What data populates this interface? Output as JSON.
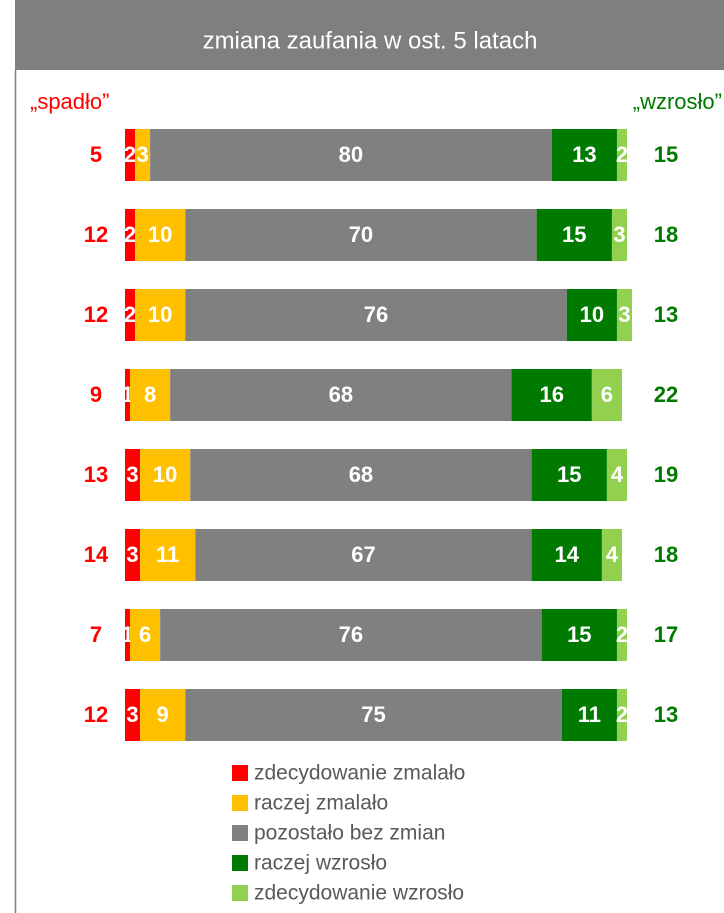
{
  "chart_data": {
    "type": "stacked_bar_horizontal",
    "title": "zmiana zaufania w ost. 5 latach",
    "left_header": "„spadło”",
    "right_header": "„wzrosło”",
    "series": [
      {
        "name": "zdecydowanie zmalało",
        "color": "#ff0000",
        "values": [
          2,
          2,
          2,
          1,
          3,
          3,
          1,
          3
        ]
      },
      {
        "name": "raczej zmalało",
        "color": "#ffc000",
        "values": [
          3,
          10,
          10,
          8,
          10,
          11,
          6,
          9
        ]
      },
      {
        "name": "pozostało bez zmian",
        "color": "#808080",
        "values": [
          80,
          70,
          76,
          68,
          68,
          67,
          76,
          75
        ]
      },
      {
        "name": "raczej wzrosło",
        "color": "#007a00",
        "values": [
          13,
          15,
          10,
          16,
          15,
          14,
          15,
          11
        ]
      },
      {
        "name": "zdecydowanie wzrosło",
        "color": "#92d050",
        "values": [
          2,
          3,
          3,
          6,
          4,
          4,
          2,
          2
        ]
      }
    ],
    "left_totals": [
      5,
      12,
      12,
      9,
      13,
      14,
      7,
      12
    ],
    "left_color": "#ff0000",
    "right_totals": [
      15,
      18,
      13,
      22,
      19,
      18,
      17,
      13
    ],
    "right_color": "#007a00",
    "header_color": "#7f7f7f"
  }
}
